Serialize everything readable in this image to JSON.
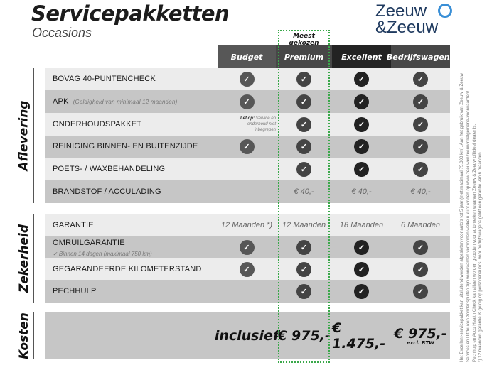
{
  "header": {
    "title": "Servicepakketten",
    "subtitle": "Occasions",
    "logo_text": [
      "Zeeuw",
      "&Zeeuw"
    ],
    "highlight_label": "Meest gekozen"
  },
  "columns": [
    {
      "label": "Budget",
      "color": "#575757"
    },
    {
      "label": "Premium",
      "color": "#474747"
    },
    {
      "label": "Excellent",
      "color": "#232323"
    },
    {
      "label": "Bedrijfswagens",
      "color": "#474747"
    }
  ],
  "check_colors": [
    "#575757",
    "#444444",
    "#222222",
    "#444444"
  ],
  "sections": [
    {
      "label": "Aflevering",
      "rows": [
        {
          "label": "BOVAG 40-PUNTENCHECK",
          "cells": [
            "check",
            "check",
            "check",
            "check"
          ]
        },
        {
          "label": "APK",
          "note": "(Geldigheid van minimaal 12 maanden)",
          "cells": [
            "check",
            "check",
            "check",
            "check"
          ]
        },
        {
          "label": "ONDERHOUDSPAKKET",
          "cells": [
            "letop",
            "check",
            "check",
            "check"
          ]
        },
        {
          "label": "REINIGING BINNEN- EN BUITENZIJDE",
          "cells": [
            "check",
            "check",
            "check",
            "check"
          ]
        },
        {
          "label": "POETS- / WAXBEHANDELING",
          "cells": [
            "",
            "check",
            "check",
            "check"
          ]
        },
        {
          "label": "BRANDSTOF / ACCULADING",
          "cells": [
            "",
            "€ 40,-",
            "€ 40,-",
            "€ 40,-"
          ]
        }
      ]
    },
    {
      "label": "Zekerheid",
      "rows": [
        {
          "label": "GARANTIE",
          "cells": [
            "12 Maanden *)",
            "12 Maanden",
            "18 Maanden",
            "6 Maanden"
          ]
        },
        {
          "label": "OMRUILGARANTIE",
          "sub": "✓   Binnen 14 dagen (maximaal 750 km)",
          "cells": [
            "check",
            "check",
            "check",
            "check"
          ]
        },
        {
          "label": "GEGARANDEERDE KILOMETERSTAND",
          "cells": [
            "check",
            "check",
            "check",
            "check"
          ]
        },
        {
          "label": "PECHHULP",
          "cells": [
            "",
            "check",
            "check",
            "check"
          ]
        }
      ]
    },
    {
      "label": "Kosten",
      "rows": [
        {
          "label": "",
          "cells": [
            "inclusief",
            "€ 975,-",
            "€ 1.475,-",
            "€ 975,-"
          ],
          "price_note": "excl. BTW"
        }
      ]
    }
  ],
  "letop": {
    "bold": "Let op:",
    "text": "Service en onderhoud niet inbegrepen"
  },
  "footnote": [
    "Het Excellent-servicepakket kan uitsluitend worden afgesloten voor auto's tot 5 jaar (met maximaal 75.000 km). Aan het gebruik van Zeeuw & Zeeuw+",
    "Services en Uitdeuken zonder spuiten zijn voorwaarden verbonden welke u kunt vinden op www.zeeuwenzeeuw.nl/algemene-voorwaarden/.",
    "Pechhulp en Accu Health Check kan alleen worden geboden voor automerken waarvan Zeeuw & Zeeuw officieel dealer is.",
    "*) 12 maanden garantie is geldig op personenauto's, voor bedrijfswagens geldt een garantie van 6 maanden."
  ],
  "row_colors": {
    "light": "#ececec",
    "dark": "#c6c6c6"
  }
}
